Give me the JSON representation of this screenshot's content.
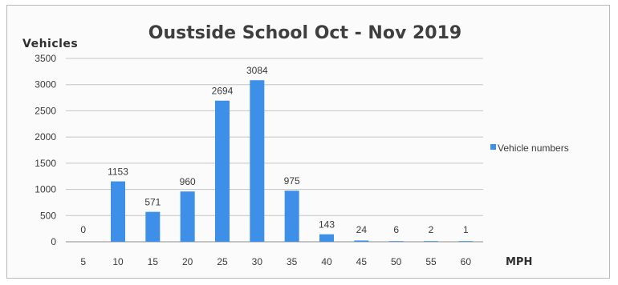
{
  "chart_data": {
    "type": "bar",
    "title": "Oustside School Oct - Nov 2019",
    "ylabel": "Vehicles",
    "xlabel": "MPH",
    "categories": [
      "5",
      "10",
      "15",
      "20",
      "25",
      "30",
      "35",
      "40",
      "45",
      "50",
      "55",
      "60"
    ],
    "series": [
      {
        "name": "Vehicle numbers",
        "values": [
          0,
          1153,
          571,
          960,
          2694,
          3084,
          975,
          143,
          24,
          6,
          2,
          1
        ],
        "color": "#3d8fe8"
      }
    ],
    "ylim": [
      0,
      3500
    ],
    "yticks": [
      0,
      500,
      1000,
      1500,
      2000,
      2500,
      3000,
      3500
    ],
    "grid": true,
    "legend_position": "right"
  }
}
